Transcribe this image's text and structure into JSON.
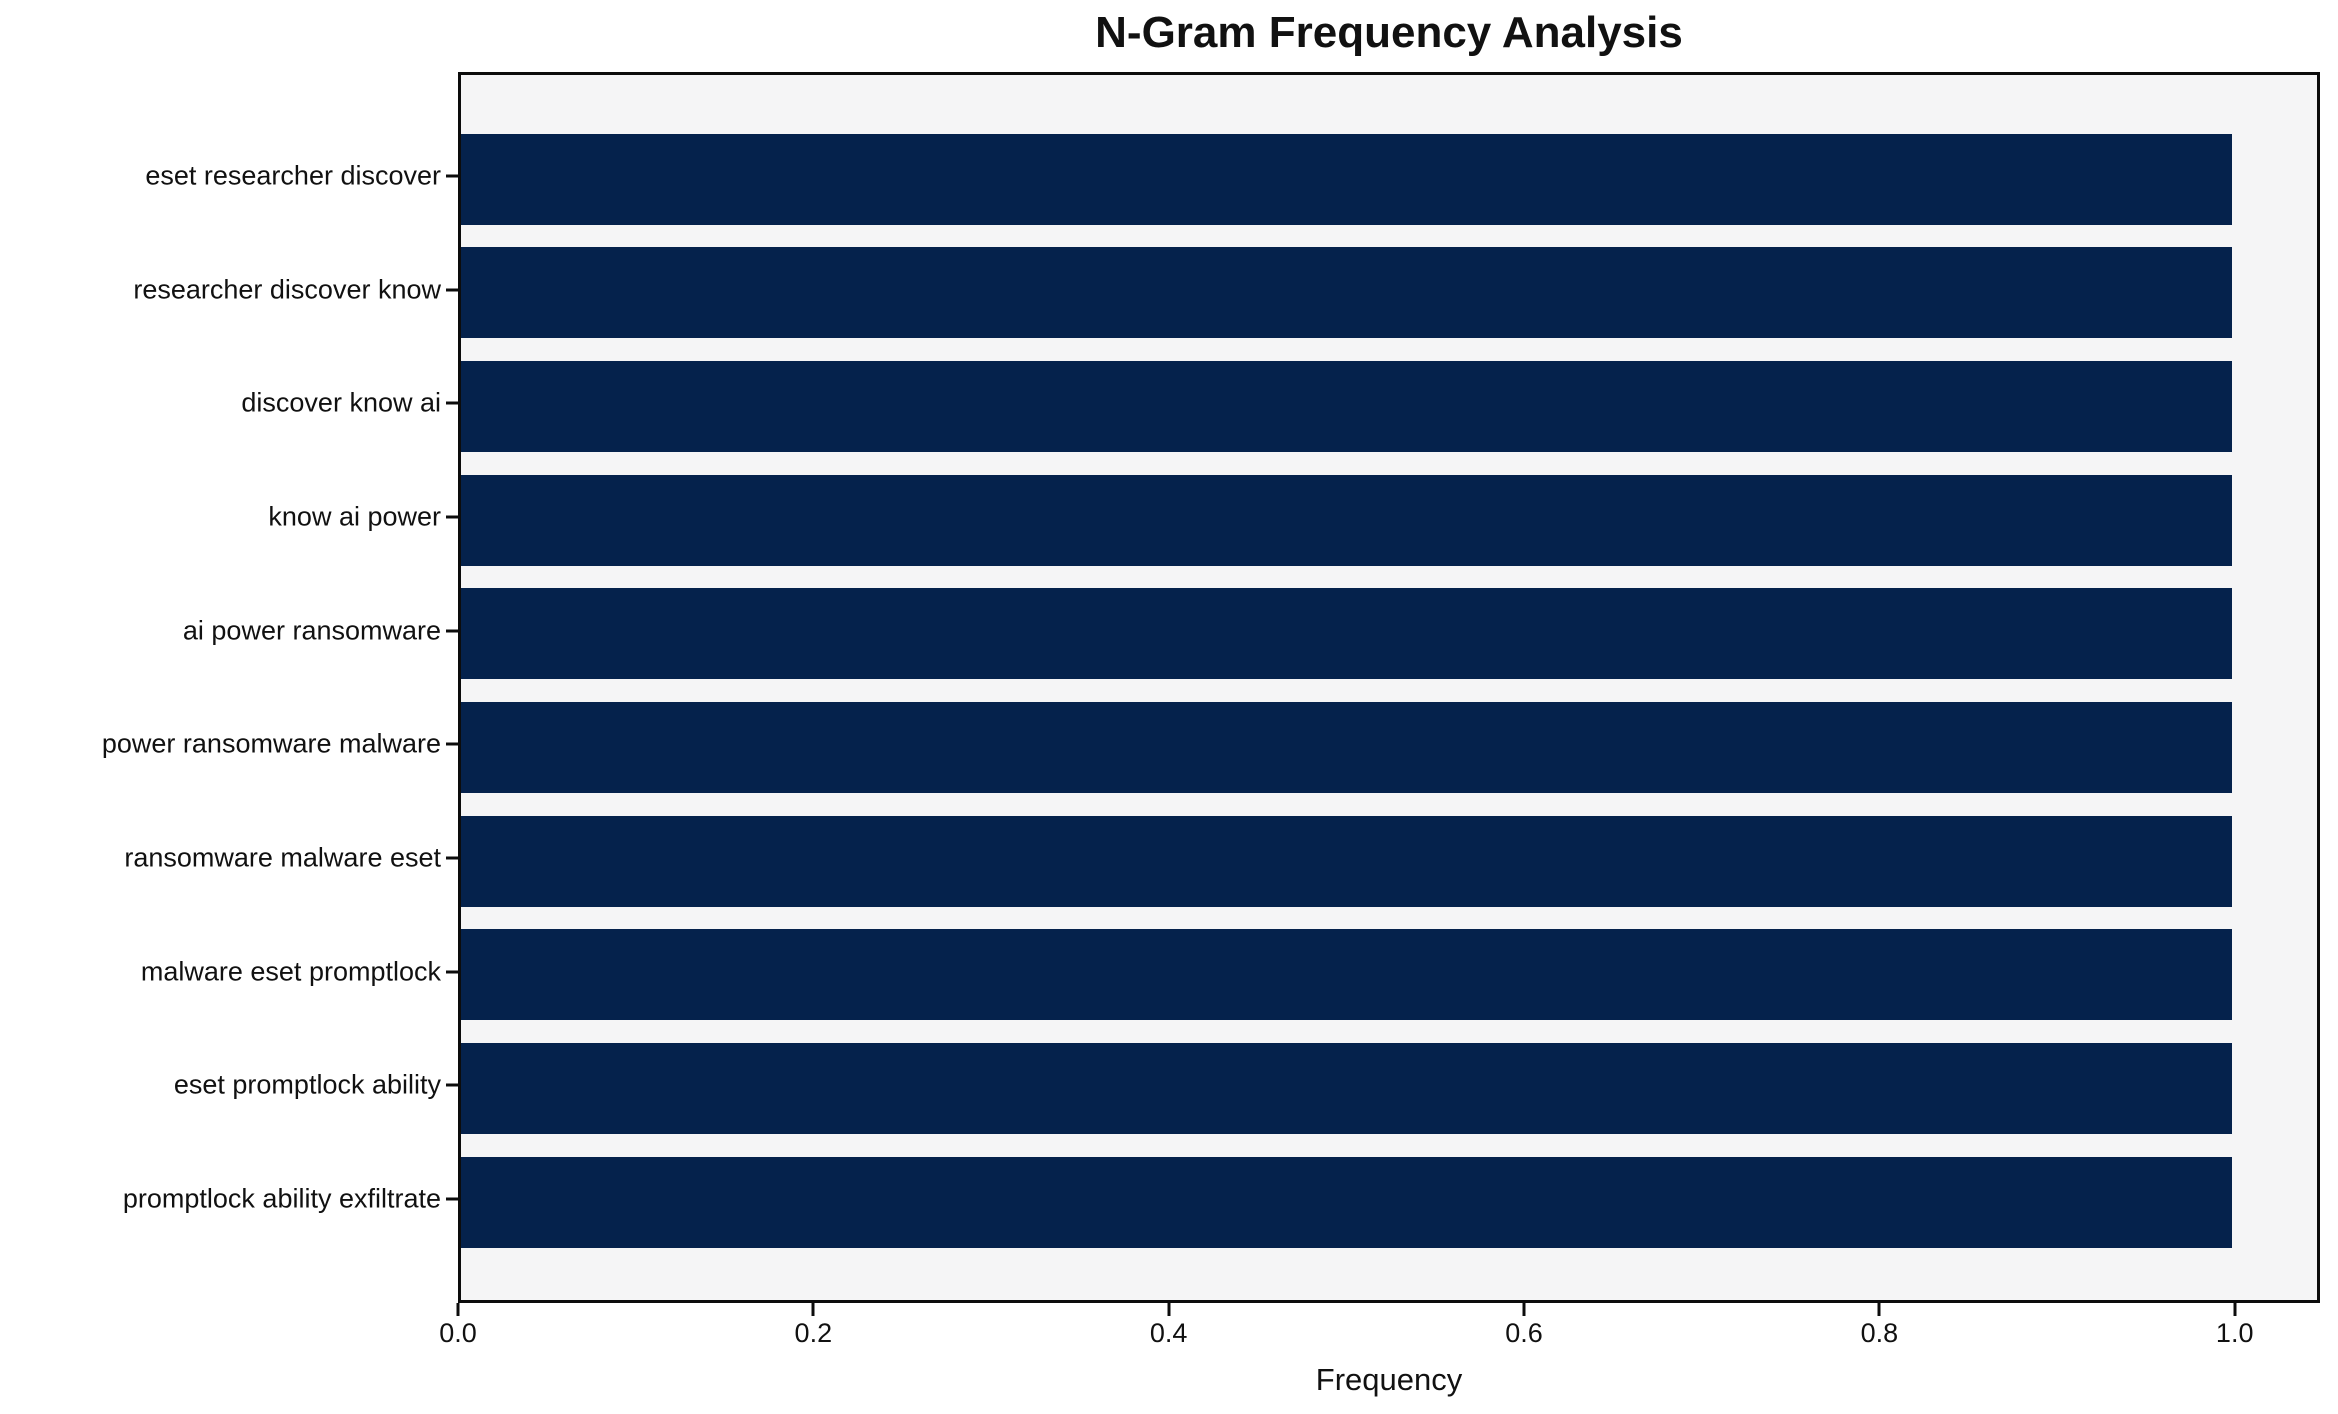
{
  "chart_data": {
    "type": "bar",
    "orientation": "horizontal",
    "title": "N-Gram Frequency Analysis",
    "xlabel": "Frequency",
    "ylabel": "",
    "categories": [
      "eset researcher discover",
      "researcher discover know",
      "discover know ai",
      "know ai power",
      "ai power ransomware",
      "power ransomware malware",
      "ransomware malware eset",
      "malware eset promptlock",
      "eset promptlock ability",
      "promptlock ability exfiltrate"
    ],
    "values": [
      1.0,
      1.0,
      1.0,
      1.0,
      1.0,
      1.0,
      1.0,
      1.0,
      1.0,
      1.0
    ],
    "x_ticks": [
      0.0,
      0.2,
      0.4,
      0.6,
      0.8,
      1.0
    ],
    "x_tick_labels": [
      "0.0",
      "0.2",
      "0.4",
      "0.6",
      "0.8",
      "1.0"
    ],
    "xlim": [
      0.0,
      1.048
    ],
    "grid": false,
    "legend": null,
    "colors": {
      "bar": "#05224c",
      "plot_background": "#f5f5f6",
      "figure_background": "#ffffff",
      "spine": "#0c0c0c",
      "text": "#111111"
    }
  }
}
